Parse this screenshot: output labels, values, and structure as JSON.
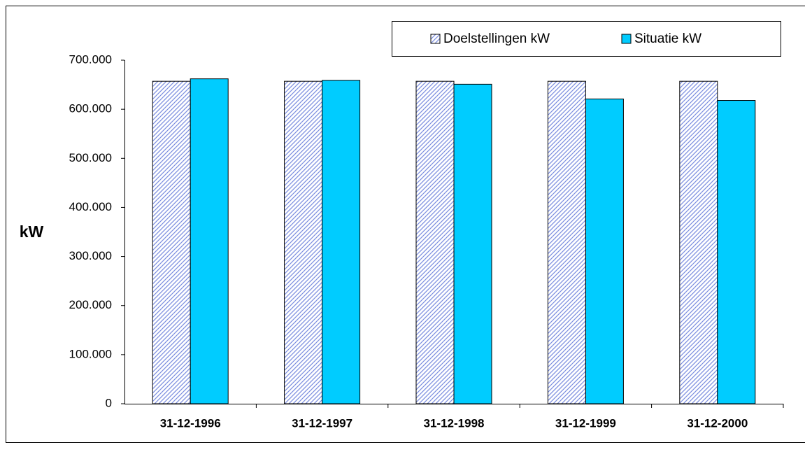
{
  "chart_data": {
    "type": "bar",
    "y_label": "kW",
    "categories": [
      "31-12-1996",
      "31-12-1997",
      "31-12-1998",
      "31-12-1999",
      "31-12-2000"
    ],
    "series": [
      {
        "name": "Doelstellingen kW",
        "color": "#7d8fe0",
        "hatch": true,
        "values": [
          657000,
          657000,
          657000,
          657000,
          657000
        ]
      },
      {
        "name": "Situatie kW",
        "color": "#00ccff",
        "hatch": false,
        "values": [
          662000,
          659000,
          651000,
          621000,
          618000
        ]
      }
    ],
    "ylim": [
      0,
      700000
    ],
    "yticks": [
      0,
      {
        "value": 100000,
        "label": "100.000"
      },
      {
        "value": 200000,
        "label": "200.000"
      },
      {
        "value": 300000,
        "label": "300.000"
      },
      {
        "value": 400000,
        "label": "400.000"
      },
      {
        "value": 500000,
        "label": "500.000"
      },
      {
        "value": 600000,
        "label": "600.000"
      },
      {
        "value": 700000,
        "label": "700.000"
      }
    ],
    "grid": false
  }
}
